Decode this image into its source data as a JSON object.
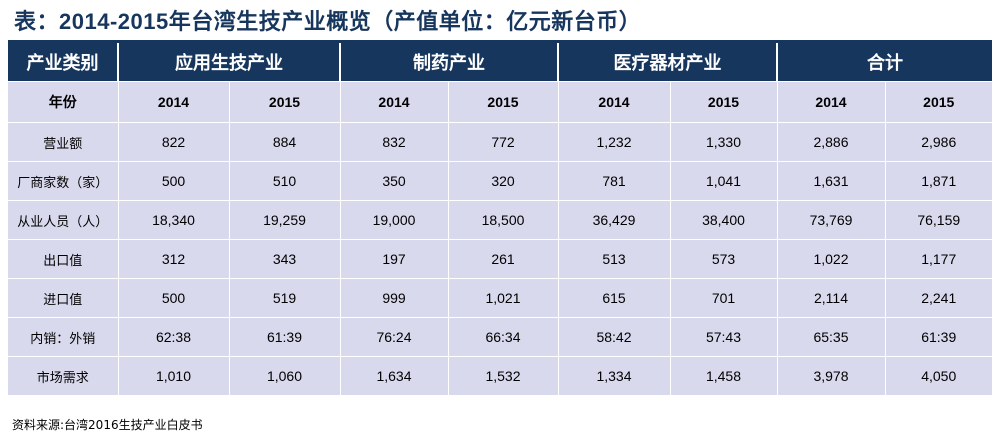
{
  "title": "表：2014-2015年台湾生技产业概览（产值单位：亿元新台币）",
  "header": {
    "category_label": "产业类别",
    "groups": [
      "应用生技产业",
      "制药产业",
      "医疗器材产业",
      "合计"
    ]
  },
  "year_row": {
    "label": "年份",
    "years": [
      "2014",
      "2015",
      "2014",
      "2015",
      "2014",
      "2015",
      "2014",
      "2015"
    ]
  },
  "rows": [
    {
      "label": "营业额",
      "values": [
        "822",
        "884",
        "832",
        "772",
        "1,232",
        "1,330",
        "2,886",
        "2,986"
      ]
    },
    {
      "label": "厂商家数（家）",
      "values": [
        "500",
        "510",
        "350",
        "320",
        "781",
        "1,041",
        "1,631",
        "1,871"
      ]
    },
    {
      "label": "从业人员（人）",
      "values": [
        "18,340",
        "19,259",
        "19,000",
        "18,500",
        "36,429",
        "38,400",
        "73,769",
        "76,159"
      ]
    },
    {
      "label": "出口值",
      "values": [
        "312",
        "343",
        "197",
        "261",
        "513",
        "573",
        "1,022",
        "1,177"
      ]
    },
    {
      "label": "进口值",
      "values": [
        "500",
        "519",
        "999",
        "1,021",
        "615",
        "701",
        "2,114",
        "2,241"
      ]
    },
    {
      "label": "内销：外销",
      "values": [
        "62:38",
        "61:39",
        "76:24",
        "66:34",
        "58:42",
        "57:43",
        "65:35",
        "61:39"
      ]
    },
    {
      "label": "市场需求",
      "values": [
        "1,010",
        "1,060",
        "1,634",
        "1,532",
        "1,334",
        "1,458",
        "3,978",
        "4,050"
      ]
    }
  ],
  "source": "资料来源:台湾2016生技产业白皮书",
  "colors": {
    "header_bg": "#17365d",
    "cell_bg": "#d9d9ee",
    "title": "#17365d"
  }
}
